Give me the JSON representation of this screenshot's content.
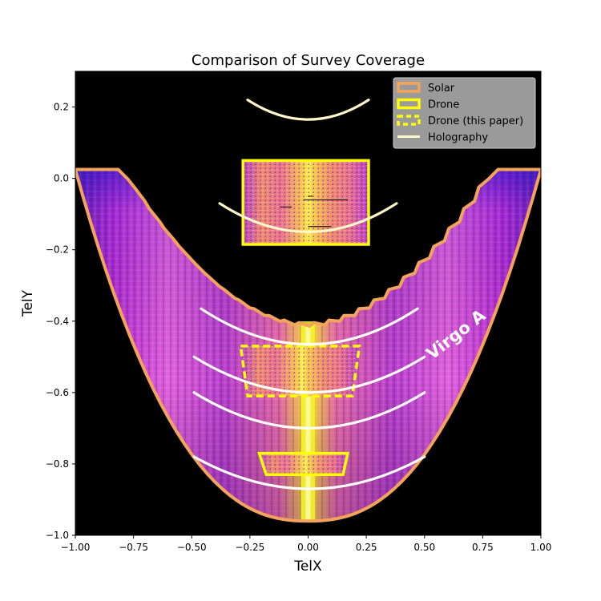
{
  "chart_data": {
    "type": "heatmap",
    "title": "Comparison of Survey Coverage",
    "xlabel": "TelX",
    "ylabel": "TelY",
    "xlim": [
      -1.0,
      1.0
    ],
    "ylim": [
      -1.0,
      0.3
    ],
    "xticks": [
      -1.0,
      -0.75,
      -0.5,
      -0.25,
      0.0,
      0.25,
      0.5,
      0.75,
      1.0
    ],
    "xtick_labels": [
      "−1.00",
      "−0.75",
      "−0.50",
      "−0.25",
      "0.00",
      "0.25",
      "0.50",
      "0.75",
      "1.00"
    ],
    "yticks": [
      -1.0,
      -0.8,
      -0.6,
      -0.4,
      -0.2,
      0.0,
      0.2
    ],
    "ytick_labels": [
      "−1.0",
      "−0.8",
      "−0.6",
      "−0.4",
      "−0.2",
      "0.0",
      "0.2"
    ],
    "legend": {
      "position": "upper right",
      "entries": [
        {
          "label": "Solar",
          "style": "box",
          "color": "#f4a35a"
        },
        {
          "label": "Drone",
          "style": "box",
          "color": "#ffff00"
        },
        {
          "label": "Drone (this paper)",
          "style": "dashed-box",
          "color": "#ffff00"
        },
        {
          "label": "Holography",
          "style": "line",
          "color": "#fff8c8"
        }
      ]
    },
    "solar_region": {
      "top_y": 0.025,
      "inner_rim_x": 0.74,
      "inner_bottom_y": -0.405,
      "outer_bottom_y": -0.96,
      "colormap": "plasma",
      "boundary_color": "#f4a35a"
    },
    "drone_regions": [
      {
        "name": "upper",
        "x": [
          -0.28,
          0.26
        ],
        "y": [
          -0.185,
          0.05
        ]
      },
      {
        "name": "lower",
        "x_top": [
          -0.21,
          0.17
        ],
        "x_bottom": [
          -0.18,
          0.15
        ],
        "y": [
          -0.83,
          -0.77
        ]
      }
    ],
    "drone_this_paper": {
      "x_top": [
        -0.29,
        0.22
      ],
      "x_bottom": [
        -0.26,
        0.19
      ],
      "y": [
        -0.61,
        -0.47
      ]
    },
    "holography_arcs": [
      {
        "x": [
          -0.26,
          0.26
        ],
        "y_center": 0.165,
        "y_end": 0.22,
        "color": "#fff8c8"
      },
      {
        "x": [
          -0.38,
          0.38
        ],
        "y_center": -0.15,
        "y_end": -0.07,
        "color": "#fff8c8"
      },
      {
        "x": [
          -0.46,
          0.47
        ],
        "y_center": -0.465,
        "y_end": -0.365,
        "color": "#ffffff"
      },
      {
        "x": [
          -0.49,
          0.5
        ],
        "y_center": -0.6,
        "y_end": -0.5,
        "color": "#ffffff"
      },
      {
        "x": [
          -0.49,
          0.5
        ],
        "y_center": -0.7,
        "y_end": -0.6,
        "color": "#ffffff"
      },
      {
        "x": [
          -0.49,
          0.5
        ],
        "y_center": -0.87,
        "y_end": -0.78,
        "color": "#ffffff"
      }
    ],
    "annotations": [
      {
        "text": "Virgo A",
        "x": 0.65,
        "y": -0.45,
        "rotation": -38
      }
    ],
    "colors": {
      "background": "#000000",
      "plasma_dark": "#0d0887",
      "plasma_mid": "#cc4778",
      "plasma_bright": "#f0f921"
    }
  }
}
